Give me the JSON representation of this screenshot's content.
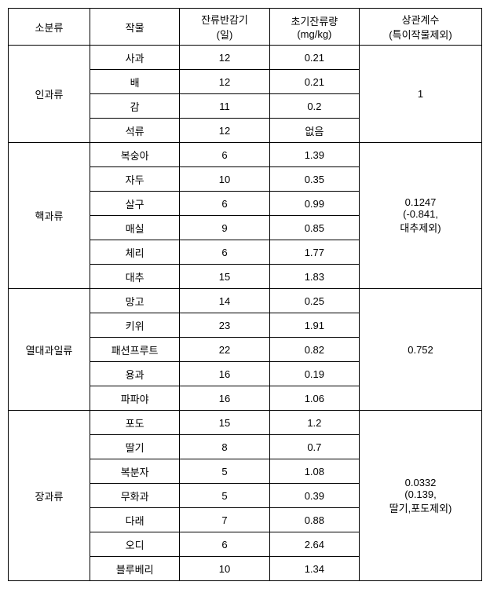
{
  "headers": {
    "col1": "소분류",
    "col2": "작물",
    "col3_line1": "잔류반감기",
    "col3_line2": "(일)",
    "col4_line1": "초기잔류량",
    "col4_line2": "(mg/kg)",
    "col5_line1": "상관계수",
    "col5_line2": "(특이작물제외)"
  },
  "groups": [
    {
      "name": "인과류",
      "corr_line1": "1",
      "corr_line2": "",
      "corr_line3": "",
      "rows": [
        {
          "crop": "사과",
          "halflife": "12",
          "initial": "0.21"
        },
        {
          "crop": "배",
          "halflife": "12",
          "initial": "0.21"
        },
        {
          "crop": "감",
          "halflife": "11",
          "initial": "0.2"
        },
        {
          "crop": "석류",
          "halflife": "12",
          "initial": "없음"
        }
      ]
    },
    {
      "name": "핵과류",
      "corr_line1": "0.1247",
      "corr_line2": "(-0.841,",
      "corr_line3": "대추제외)",
      "rows": [
        {
          "crop": "복숭아",
          "halflife": "6",
          "initial": "1.39"
        },
        {
          "crop": "자두",
          "halflife": "10",
          "initial": "0.35"
        },
        {
          "crop": "살구",
          "halflife": "6",
          "initial": "0.99"
        },
        {
          "crop": "매실",
          "halflife": "9",
          "initial": "0.85"
        },
        {
          "crop": "체리",
          "halflife": "6",
          "initial": "1.77"
        },
        {
          "crop": "대추",
          "halflife": "15",
          "initial": "1.83"
        }
      ]
    },
    {
      "name": "열대과일류",
      "corr_line1": "0.752",
      "corr_line2": "",
      "corr_line3": "",
      "rows": [
        {
          "crop": "망고",
          "halflife": "14",
          "initial": "0.25"
        },
        {
          "crop": "키위",
          "halflife": "23",
          "initial": "1.91"
        },
        {
          "crop": "패션프루트",
          "halflife": "22",
          "initial": "0.82"
        },
        {
          "crop": "용과",
          "halflife": "16",
          "initial": "0.19"
        },
        {
          "crop": "파파야",
          "halflife": "16",
          "initial": "1.06"
        }
      ]
    },
    {
      "name": "장과류",
      "corr_line1": "0.0332",
      "corr_line2": "(0.139,",
      "corr_line3": "딸기,포도제외)",
      "rows": [
        {
          "crop": "포도",
          "halflife": "15",
          "initial": "1.2"
        },
        {
          "crop": "딸기",
          "halflife": "8",
          "initial": "0.7"
        },
        {
          "crop": "복분자",
          "halflife": "5",
          "initial": "1.08"
        },
        {
          "crop": "무화과",
          "halflife": "5",
          "initial": "0.39"
        },
        {
          "crop": "다래",
          "halflife": "7",
          "initial": "0.88"
        },
        {
          "crop": "오디",
          "halflife": "6",
          "initial": "2.64"
        },
        {
          "crop": "블루베리",
          "halflife": "10",
          "initial": "1.34"
        }
      ]
    }
  ]
}
